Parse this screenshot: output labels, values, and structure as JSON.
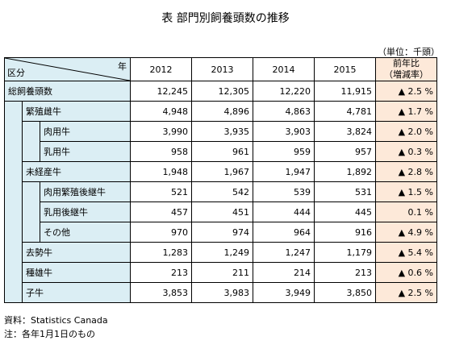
{
  "title": "表 部門別飼養頭数の推移",
  "unit": "（単位：千頭）",
  "header": {
    "corner_year": "年",
    "corner_category": "区分",
    "years": [
      "2012",
      "2013",
      "2014",
      "2015"
    ],
    "change_line1": "前年比",
    "change_line2": "（増減率）"
  },
  "rows": [
    {
      "label": "総飼養頭数",
      "level": 0,
      "values": [
        "12,245",
        "12,305",
        "12,220",
        "11,915"
      ],
      "change": "▲ 2.5 %"
    },
    {
      "label": "繁殖雌牛",
      "level": 1,
      "values": [
        "4,948",
        "4,896",
        "4,863",
        "4,781"
      ],
      "change": "▲ 1.7 %"
    },
    {
      "label": "肉用牛",
      "level": 2,
      "values": [
        "3,990",
        "3,935",
        "3,903",
        "3,824"
      ],
      "change": "▲ 2.0 %"
    },
    {
      "label": "乳用牛",
      "level": 2,
      "values": [
        "958",
        "961",
        "959",
        "957"
      ],
      "change": "▲ 0.3 %"
    },
    {
      "label": "未経産牛",
      "level": 1,
      "values": [
        "1,948",
        "1,967",
        "1,947",
        "1,892"
      ],
      "change": "▲ 2.8 %"
    },
    {
      "label": "肉用繁殖後継牛",
      "level": 2,
      "values": [
        "521",
        "542",
        "539",
        "531"
      ],
      "change": "▲ 1.5 %"
    },
    {
      "label": "乳用後継牛",
      "level": 2,
      "values": [
        "457",
        "451",
        "444",
        "445"
      ],
      "change": "0.1 %"
    },
    {
      "label": "その他",
      "level": 2,
      "values": [
        "970",
        "974",
        "964",
        "916"
      ],
      "change": "▲ 4.9 %"
    },
    {
      "label": "去勢牛",
      "level": 1,
      "values": [
        "1,283",
        "1,249",
        "1,247",
        "1,179"
      ],
      "change": "▲ 5.4 %"
    },
    {
      "label": "種雄牛",
      "level": 1,
      "values": [
        "213",
        "211",
        "214",
        "213"
      ],
      "change": "▲ 0.6 %"
    },
    {
      "label": "子牛",
      "level": 1,
      "values": [
        "3,853",
        "3,983",
        "3,949",
        "3,850"
      ],
      "change": "▲ 2.5 %"
    }
  ],
  "notes": {
    "source": "資料：Statistics Canada",
    "note": "注：各年1月1日のもの"
  }
}
